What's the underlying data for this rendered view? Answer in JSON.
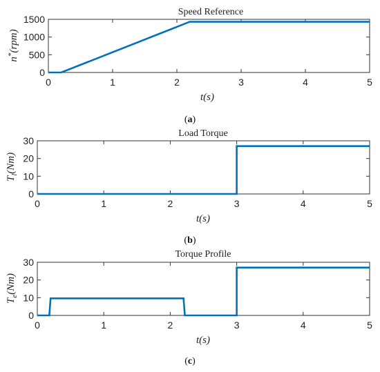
{
  "chart_data": [
    {
      "type": "line",
      "title": "Speed Reference",
      "xlabel": "t(s)",
      "ylabel": "n*(rpm)",
      "xlim": [
        0,
        5
      ],
      "ylim": [
        0,
        1500
      ],
      "xticks": [
        "0",
        "1",
        "2",
        "3",
        "4",
        "5"
      ],
      "yticks": [
        "0",
        "500",
        "1000",
        "1500"
      ],
      "series": [
        {
          "x": [
            0,
            0.2,
            2.2,
            5
          ],
          "y": [
            0,
            0,
            1430,
            1430
          ]
        }
      ],
      "caption_label": "a",
      "color": "#0072BD"
    },
    {
      "type": "line",
      "title": "Load Torque",
      "xlabel": "t(s)",
      "ylabel": "Tl(Nm)",
      "xlim": [
        0,
        5
      ],
      "ylim": [
        0,
        30
      ],
      "xticks": [
        "0",
        "1",
        "2",
        "3",
        "4",
        "5"
      ],
      "yticks": [
        "0",
        "10",
        "20",
        "30"
      ],
      "series": [
        {
          "x": [
            0,
            3,
            3,
            5
          ],
          "y": [
            0,
            0,
            27,
            27
          ]
        }
      ],
      "caption_label": "b",
      "color": "#0072BD"
    },
    {
      "type": "line",
      "title": "Torque Profile",
      "xlabel": "t(s)",
      "ylabel": "Te(Nm)",
      "xlim": [
        0,
        5
      ],
      "ylim": [
        0,
        30
      ],
      "xticks": [
        "0",
        "1",
        "2",
        "3",
        "4",
        "5"
      ],
      "yticks": [
        "0",
        "10",
        "20",
        "30"
      ],
      "series": [
        {
          "x": [
            0,
            0.18,
            0.2,
            2.2,
            2.22,
            3,
            3,
            5
          ],
          "y": [
            0,
            0,
            9.6,
            9.6,
            0,
            0,
            27,
            27
          ]
        }
      ],
      "caption_label": "c",
      "color": "#0072BD"
    }
  ]
}
